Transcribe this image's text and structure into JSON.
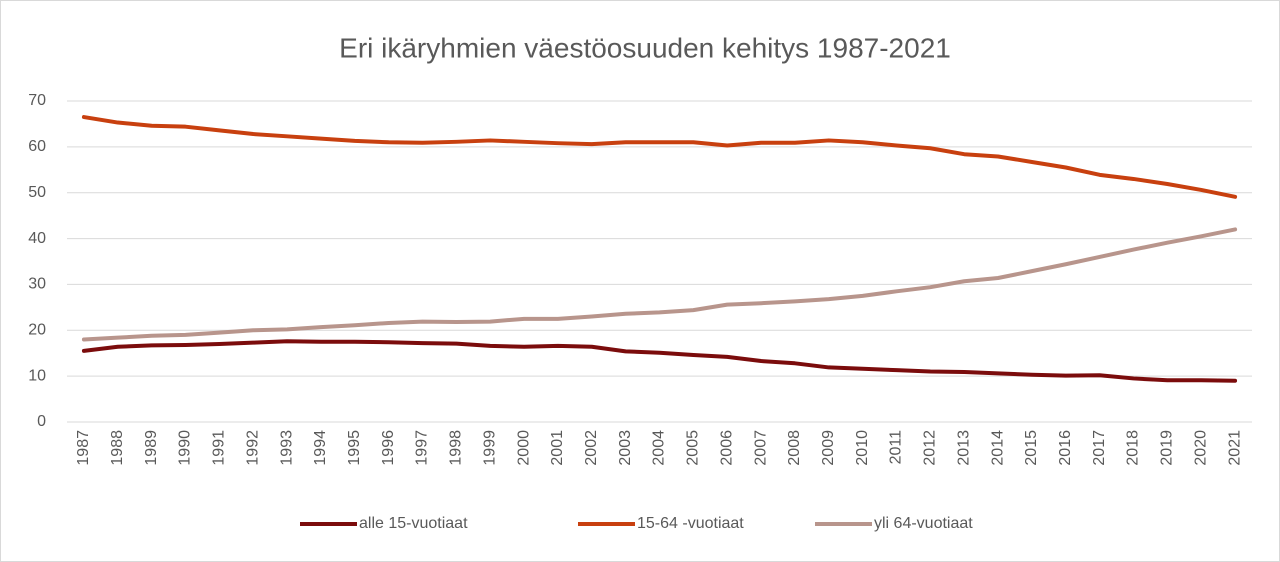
{
  "chart_data": {
    "type": "line",
    "title": "Eri ikäryhmien väestöosuuden kehitys 1987-2021",
    "categories": [
      "1987",
      "1988",
      "1989",
      "1990",
      "1991",
      "1992",
      "1993",
      "1994",
      "1995",
      "1996",
      "1997",
      "1998",
      "1999",
      "2000",
      "2001",
      "2002",
      "2003",
      "2004",
      "2005",
      "2006",
      "2007",
      "2008",
      "2009",
      "2010",
      "2011",
      "2012",
      "2013",
      "2014",
      "2015",
      "2016",
      "2017",
      "2018",
      "2019",
      "2020",
      "2021"
    ],
    "series": [
      {
        "name": "alle 15-vuotiaat",
        "color": "#7b0c0c",
        "values": [
          15.5,
          16.4,
          16.7,
          16.8,
          17.0,
          17.3,
          17.6,
          17.5,
          17.5,
          17.4,
          17.2,
          17.1,
          16.6,
          16.4,
          16.6,
          16.4,
          15.4,
          15.1,
          14.6,
          14.2,
          13.3,
          12.8,
          11.9,
          11.6,
          11.3,
          11.0,
          10.9,
          10.6,
          10.3,
          10.1,
          10.2,
          9.5,
          9.1,
          9.1,
          9.0
        ]
      },
      {
        "name": "15-64 -vuotiaat",
        "color": "#c8400f",
        "values": [
          66.5,
          65.3,
          64.6,
          64.4,
          63.6,
          62.8,
          62.3,
          61.8,
          61.3,
          61.0,
          60.9,
          61.1,
          61.4,
          61.1,
          60.8,
          60.6,
          61.0,
          61.0,
          61.0,
          60.3,
          60.9,
          60.9,
          61.4,
          61.0,
          60.3,
          59.7,
          58.4,
          57.9,
          56.7,
          55.5,
          53.9,
          53.0,
          51.9,
          50.6,
          49.1
        ]
      },
      {
        "name": "yli 64-vuotiaat",
        "color": "#b8958c",
        "values": [
          18.0,
          18.4,
          18.8,
          19.0,
          19.5,
          20.0,
          20.2,
          20.7,
          21.1,
          21.6,
          21.9,
          21.8,
          21.9,
          22.5,
          22.5,
          23.0,
          23.6,
          23.9,
          24.4,
          25.6,
          25.9,
          26.3,
          26.8,
          27.5,
          28.5,
          29.4,
          30.7,
          31.4,
          32.9,
          34.4,
          36.0,
          37.6,
          39.1,
          40.5,
          42.0
        ]
      }
    ],
    "ylim": [
      0,
      70
    ],
    "yticks": [
      0,
      10,
      20,
      30,
      40,
      50,
      60,
      70
    ],
    "grid": true,
    "legend": "bottom"
  }
}
